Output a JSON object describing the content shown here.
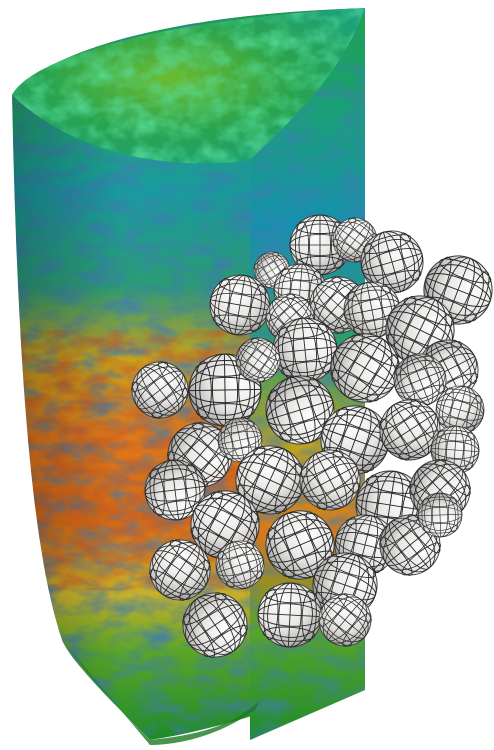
{
  "scene": {
    "subject": "half-cylinder-with-sphere-cluster",
    "background_color": "#ffffff",
    "field_colormap": [
      "#0a3d8f",
      "#1f8fbf",
      "#1bb38a",
      "#1f9a3c",
      "#6fb82e",
      "#e0d21e",
      "#e98a1a",
      "#c83a12",
      "#7a1a0a"
    ],
    "mesh_sphere_fill": "#e9e8e6",
    "mesh_line_color": "#2a2a2a",
    "sphere_count": 38
  }
}
